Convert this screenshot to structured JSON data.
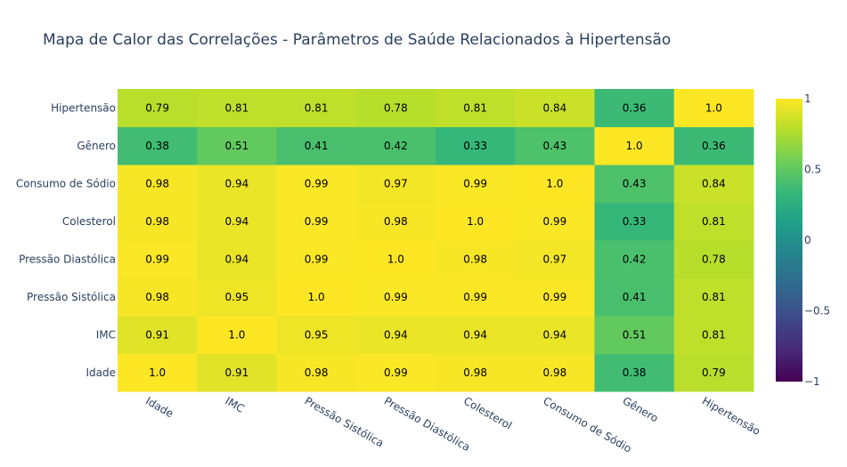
{
  "chart_data": {
    "type": "heatmap",
    "title": "Mapa de Calor das Correlações - Parâmetros de Saúde Relacionados à Hipertensão",
    "x": [
      "Idade",
      "IMC",
      "Pressão Sistólica",
      "Pressão Diastólica",
      "Colesterol",
      "Consumo de Sódio",
      "Gênero",
      "Hipertensão"
    ],
    "y": [
      "Idade",
      "IMC",
      "Pressão Sistólica",
      "Pressão Diastólica",
      "Colesterol",
      "Consumo de Sódio",
      "Gênero",
      "Hipertensão"
    ],
    "z": [
      [
        1.0,
        0.91,
        0.98,
        0.99,
        0.98,
        0.98,
        0.38,
        0.79
      ],
      [
        0.91,
        1.0,
        0.95,
        0.94,
        0.94,
        0.94,
        0.51,
        0.81
      ],
      [
        0.98,
        0.95,
        1.0,
        0.99,
        0.99,
        0.99,
        0.41,
        0.81
      ],
      [
        0.99,
        0.94,
        0.99,
        1.0,
        0.98,
        0.97,
        0.42,
        0.78
      ],
      [
        0.98,
        0.94,
        0.99,
        0.98,
        1.0,
        0.99,
        0.33,
        0.81
      ],
      [
        0.98,
        0.94,
        0.99,
        0.97,
        0.99,
        1.0,
        0.43,
        0.84
      ],
      [
        0.38,
        0.51,
        0.41,
        0.42,
        0.33,
        0.43,
        1.0,
        0.36
      ],
      [
        0.79,
        0.81,
        0.81,
        0.78,
        0.81,
        0.84,
        0.36,
        1.0
      ]
    ],
    "text": [
      [
        "1.0",
        "0.91",
        "0.98",
        "0.99",
        "0.98",
        "0.98",
        "0.38",
        "0.79"
      ],
      [
        "0.91",
        "1.0",
        "0.95",
        "0.94",
        "0.94",
        "0.94",
        "0.51",
        "0.81"
      ],
      [
        "0.98",
        "0.95",
        "1.0",
        "0.99",
        "0.99",
        "0.99",
        "0.41",
        "0.81"
      ],
      [
        "0.99",
        "0.94",
        "0.99",
        "1.0",
        "0.98",
        "0.97",
        "0.42",
        "0.78"
      ],
      [
        "0.98",
        "0.94",
        "0.99",
        "0.98",
        "1.0",
        "0.99",
        "0.33",
        "0.81"
      ],
      [
        "0.98",
        "0.94",
        "0.99",
        "0.97",
        "0.99",
        "1.0",
        "0.43",
        "0.84"
      ],
      [
        "0.38",
        "0.51",
        "0.41",
        "0.42",
        "0.33",
        "0.43",
        "1.0",
        "0.36"
      ],
      [
        "0.79",
        "0.81",
        "0.81",
        "0.78",
        "0.81",
        "0.84",
        "0.36",
        "1.0"
      ]
    ],
    "zmin": -1,
    "zmax": 1,
    "colorscale": "Viridis",
    "colorbar_ticks": [
      1,
      0.5,
      0,
      -0.5,
      -1
    ],
    "colorbar_tick_labels": [
      "1",
      "0.5",
      "0",
      "−0.5",
      "−1"
    ],
    "x_tick_angle": 30
  }
}
